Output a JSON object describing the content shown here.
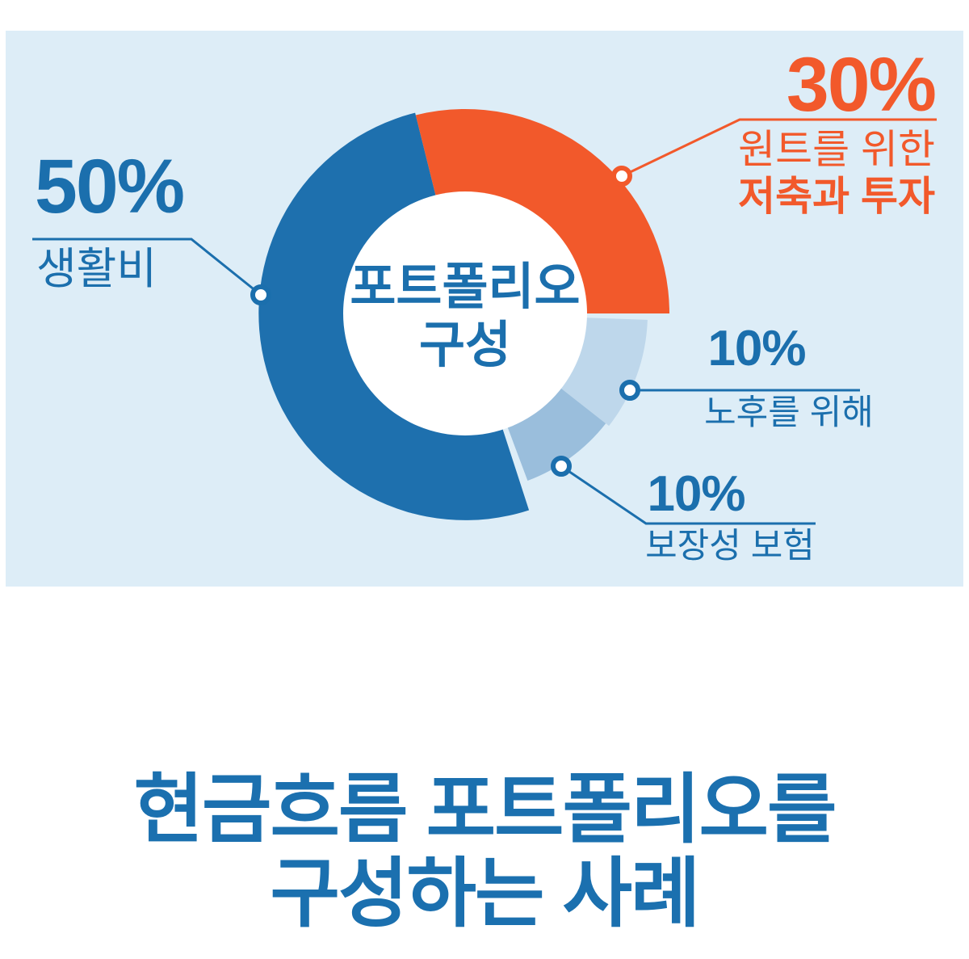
{
  "panel": {
    "background": "#DDEDF7"
  },
  "colors": {
    "primary_blue": "#1E70AE",
    "accent_orange": "#F2592B",
    "light_blue_retirement": "#BED7EB",
    "medium_blue_insurance": "#9ABEDC",
    "text_blue": "#1B6FAD",
    "panel_background": "#DDEDF7"
  },
  "chart_data": {
    "type": "pie",
    "subtype": "donut",
    "center_label_line1": "포트폴리오",
    "center_label_line2": "구성",
    "center": [
      569,
      350
    ],
    "inner_r": 150,
    "legend_position": "callouts",
    "categories": [
      "생활비",
      "원트를 위한 저축과 투자",
      "노후를 위해",
      "보장성 보험"
    ],
    "values": [
      50,
      30,
      10,
      10
    ],
    "segments": [
      {
        "id": "living",
        "label": "생활비",
        "value_pct": 50,
        "value_label": "50%",
        "color": "#1E70AE",
        "start_deg": 104,
        "end_deg": 288,
        "outer_r": 256
      },
      {
        "id": "wants",
        "label": "원트를 위한 저축과 투자",
        "value_pct": 30,
        "value_label": "30%",
        "color": "#F2592B",
        "start_deg": 0,
        "end_deg": 104,
        "outer_r": 253
      },
      {
        "id": "retirement",
        "label": "노후를 위해",
        "value_pct": 10,
        "value_label": "10%",
        "color": "#BED7EB",
        "start_deg": 322,
        "end_deg": 358,
        "outer_r": 226
      },
      {
        "id": "insurance",
        "label": "보장성 보험",
        "value_pct": 10,
        "value_label": "10%",
        "color": "#9ABEDC",
        "start_deg": 290.5,
        "end_deg": 322,
        "outer_r": 221
      }
    ]
  },
  "callouts": {
    "living": {
      "pct": "50%",
      "label": "생활비"
    },
    "wants": {
      "pct": "30%",
      "label_line1": "원트를 위한",
      "label_line2": "저축과 투자"
    },
    "retirement": {
      "pct": "10%",
      "label": "노후를 위해"
    },
    "insurance": {
      "pct": "10%",
      "label": "보장성 보험"
    }
  },
  "footer_title": {
    "line1": "현금흐름 포트폴리오를",
    "line2": "구성하는 사례"
  }
}
